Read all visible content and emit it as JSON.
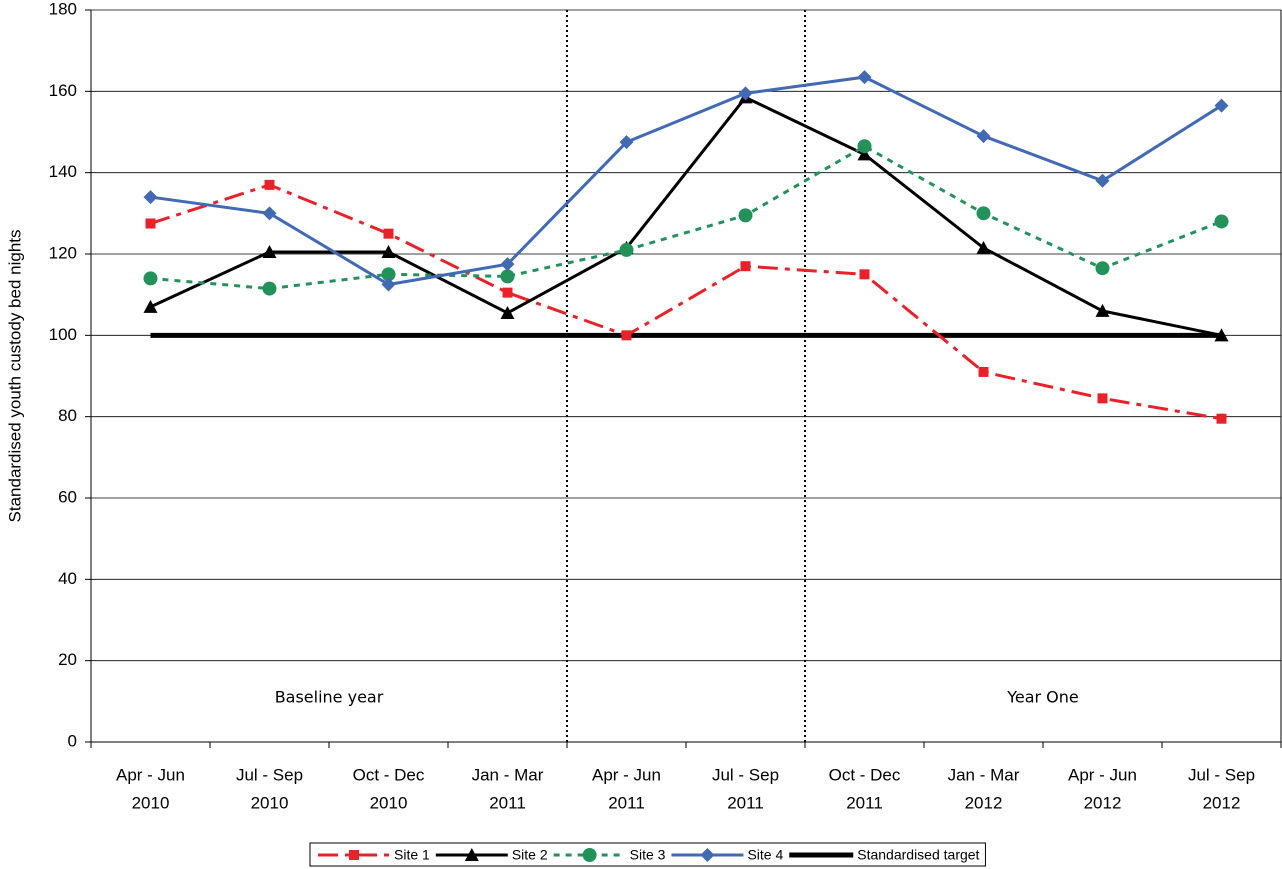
{
  "chart_data": {
    "type": "line",
    "y_label": "Standardised youth custody bed nights",
    "categories": [
      [
        "Apr - Jun",
        "2010"
      ],
      [
        "Jul - Sep",
        "2010"
      ],
      [
        "Oct - Dec",
        "2010"
      ],
      [
        "Jan - Mar",
        "2011"
      ],
      [
        "Apr - Jun",
        "2011"
      ],
      [
        "Jul  - Sep",
        "2011"
      ],
      [
        "Oct - Dec",
        "2011"
      ],
      [
        "Jan - Mar",
        "2012"
      ],
      [
        "Apr - Jun",
        "2012"
      ],
      [
        "Jul - Sep",
        "2012"
      ]
    ],
    "series": [
      {
        "name": "Site 1",
        "color": "#e8212a",
        "marker": "square",
        "dash": "dashdot",
        "values": [
          127.5,
          137,
          125,
          110.5,
          100,
          117,
          115,
          91,
          84.5,
          79.5
        ]
      },
      {
        "name": "Site 2",
        "color": "#000000",
        "marker": "triangle",
        "dash": "solid",
        "values": [
          107,
          120.5,
          120.5,
          105.5,
          121.5,
          158.5,
          144.5,
          121.5,
          106,
          100
        ]
      },
      {
        "name": "Site 3",
        "color": "#22925a",
        "marker": "circle",
        "dash": "dashed",
        "values": [
          114,
          111.5,
          115,
          114.5,
          121,
          129.5,
          146.5,
          130,
          116.5,
          128
        ]
      },
      {
        "name": "Site 4",
        "color": "#4169b4",
        "marker": "diamond",
        "dash": "solid",
        "values": [
          134,
          130,
          112.5,
          117.5,
          147.5,
          159.5,
          163.5,
          149,
          138,
          156.5
        ]
      },
      {
        "name": "Standardised target",
        "color": "#000000",
        "marker": "none",
        "dash": "thick",
        "values": [
          100,
          100,
          100,
          100,
          100,
          100,
          100,
          100,
          100,
          100
        ]
      }
    ],
    "annotations": [
      "Baseline year",
      "Year One"
    ],
    "ylim": [
      0,
      180
    ],
    "yticks": [
      0,
      20,
      40,
      60,
      80,
      100,
      120,
      140,
      160,
      180
    ],
    "grid": true,
    "legend": "bottom"
  }
}
